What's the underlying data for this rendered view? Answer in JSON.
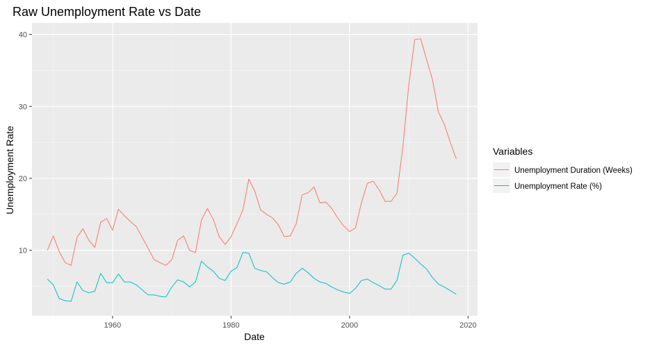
{
  "chart_data": {
    "type": "line",
    "title": "Raw Unemployment Rate vs Date",
    "xlabel": "Date",
    "ylabel": "Unemployment Rate",
    "xlim": [
      1946.4,
      2021.6
    ],
    "ylim": [
      0.9,
      41.6
    ],
    "x_ticks": [
      1960,
      1980,
      2000,
      2020
    ],
    "y_ticks": [
      10,
      20,
      30,
      40
    ],
    "grid": true,
    "legend": {
      "title": "Variables",
      "position": "right",
      "entries": [
        "Unemployment Duration (Weeks)",
        "Unemployment Rate (%)"
      ]
    },
    "x": [
      1949,
      1950,
      1951,
      1952,
      1953,
      1954,
      1955,
      1956,
      1957,
      1958,
      1959,
      1960,
      1961,
      1962,
      1963,
      1964,
      1965,
      1966,
      1967,
      1968,
      1969,
      1970,
      1971,
      1972,
      1973,
      1974,
      1975,
      1976,
      1977,
      1978,
      1979,
      1980,
      1981,
      1982,
      1983,
      1984,
      1985,
      1986,
      1987,
      1988,
      1989,
      1990,
      1991,
      1992,
      1993,
      1994,
      1995,
      1996,
      1997,
      1998,
      1999,
      2000,
      2001,
      2002,
      2003,
      2004,
      2005,
      2006,
      2007,
      2008,
      2009,
      2010,
      2011,
      2012,
      2013,
      2014,
      2015,
      2016,
      2017,
      2018
    ],
    "series": [
      {
        "name": "Unemployment Duration (Weeks)",
        "color": "#F8766D",
        "values": [
          10.0,
          12.0,
          9.8,
          8.3,
          7.9,
          11.8,
          13.0,
          11.4,
          10.4,
          13.9,
          14.4,
          12.8,
          15.7,
          14.8,
          14.0,
          13.3,
          11.8,
          10.3,
          8.7,
          8.3,
          7.9,
          8.7,
          11.4,
          12.0,
          10.0,
          9.7,
          14.2,
          15.8,
          14.3,
          11.9,
          10.8,
          11.9,
          13.7,
          15.6,
          19.9,
          18.2,
          15.6,
          15.0,
          14.5,
          13.5,
          11.9,
          12.0,
          13.7,
          17.7,
          18.0,
          18.8,
          16.6,
          16.7,
          15.8,
          14.5,
          13.4,
          12.6,
          13.1,
          16.6,
          19.3,
          19.6,
          18.4,
          16.8,
          16.8,
          17.9,
          24.4,
          33.0,
          39.3,
          39.4,
          36.5,
          33.7,
          29.2,
          27.5,
          25.0,
          22.7
        ]
      },
      {
        "name": "Unemployment Rate (%)",
        "color": "#00BFC4",
        "values": [
          6.0,
          5.2,
          3.3,
          3.0,
          2.9,
          5.6,
          4.4,
          4.1,
          4.3,
          6.8,
          5.5,
          5.5,
          6.7,
          5.6,
          5.6,
          5.2,
          4.5,
          3.8,
          3.8,
          3.6,
          3.5,
          4.9,
          5.9,
          5.6,
          4.9,
          5.6,
          8.5,
          7.7,
          7.1,
          6.1,
          5.8,
          7.1,
          7.6,
          9.7,
          9.6,
          7.5,
          7.2,
          7.0,
          6.2,
          5.5,
          5.3,
          5.6,
          6.8,
          7.5,
          6.9,
          6.1,
          5.6,
          5.4,
          4.9,
          4.5,
          4.2,
          4.0,
          4.7,
          5.8,
          6.0,
          5.5,
          5.1,
          4.6,
          4.6,
          5.8,
          9.3,
          9.6,
          8.9,
          8.1,
          7.4,
          6.2,
          5.3,
          4.9,
          4.4,
          3.9
        ]
      }
    ]
  }
}
